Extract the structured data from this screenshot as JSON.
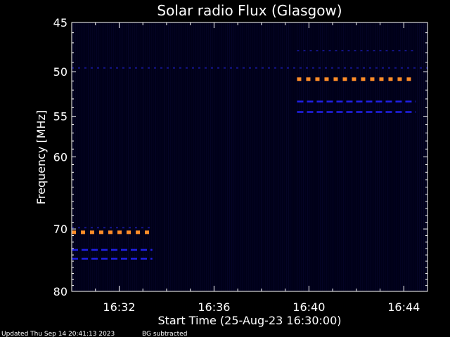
{
  "chart_data": {
    "type": "heatmap",
    "title": "Solar radio Flux (Glasgow)",
    "xlabel": "Start Time (25-Aug-23 16:30:00)",
    "ylabel": "Frequency [MHz]",
    "x_range_minutes": [
      0,
      15
    ],
    "x_ticks": [
      {
        "minute": 2,
        "label": "16:32"
      },
      {
        "minute": 6,
        "label": "16:36"
      },
      {
        "minute": 10,
        "label": "16:40"
      },
      {
        "minute": 14,
        "label": "16:44"
      }
    ],
    "y_range_mhz": [
      45,
      80
    ],
    "y_scale": "log",
    "y_ticks": [
      45,
      50,
      55,
      60,
      70,
      80
    ],
    "y_tick_labels": [
      "45",
      "50",
      "55",
      "60",
      "70",
      "80"
    ],
    "bands": [
      {
        "freq_mhz": 70.5,
        "start_min": 0.0,
        "end_min": 3.4,
        "level": "high"
      },
      {
        "freq_mhz": 73.2,
        "start_min": 0.0,
        "end_min": 3.4,
        "level": "medium"
      },
      {
        "freq_mhz": 74.6,
        "start_min": 0.0,
        "end_min": 3.4,
        "level": "medium"
      },
      {
        "freq_mhz": 69.8,
        "start_min": 0.0,
        "end_min": 3.4,
        "level": "low"
      },
      {
        "freq_mhz": 50.8,
        "start_min": 9.5,
        "end_min": 14.5,
        "level": "high"
      },
      {
        "freq_mhz": 53.3,
        "start_min": 9.5,
        "end_min": 14.5,
        "level": "medium"
      },
      {
        "freq_mhz": 54.5,
        "start_min": 9.5,
        "end_min": 14.5,
        "level": "medium"
      },
      {
        "freq_mhz": 47.8,
        "start_min": 9.5,
        "end_min": 14.5,
        "level": "low"
      },
      {
        "freq_mhz": 49.6,
        "start_min": 0.0,
        "end_min": 15.0,
        "level": "low"
      }
    ],
    "colors": {
      "background": "#000000",
      "plot_background": "#000018",
      "low": "#14148c",
      "medium": "#2020e8",
      "high": "#ff8c28"
    }
  },
  "footer": {
    "updated": "Updated Thu Sep 14 20:41:13 2023",
    "note": "BG subtracted"
  }
}
